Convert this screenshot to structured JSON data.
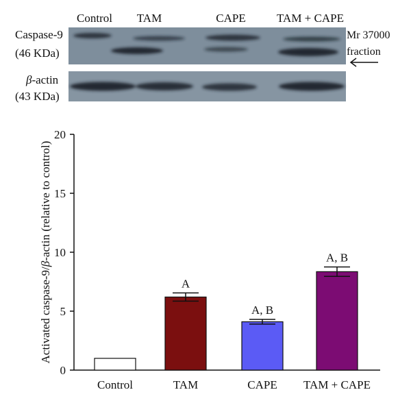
{
  "blot": {
    "lane_labels": [
      "Control",
      "TAM",
      "CAPE",
      "TAM + CAPE"
    ],
    "caspase_label": "Caspase-9",
    "caspase_kda": "(46 KDa)",
    "fraction_line1": "Mr 37000",
    "fraction_line2": "fraction",
    "actin_greek": "β",
    "actin_suffix": "-actin",
    "actin_kda": "(43 KDa)",
    "colors": {
      "panel": "#7e8e9c",
      "band": "#1e252d"
    }
  },
  "chart_data": {
    "type": "bar",
    "categories": [
      "Control",
      "TAM",
      "CAPE",
      "TAM + CAPE"
    ],
    "values": [
      1.0,
      6.2,
      4.1,
      8.35
    ],
    "errors": [
      0,
      0.35,
      0.2,
      0.4
    ],
    "annotations": [
      "",
      "A",
      "A, B",
      "A, B"
    ],
    "colors": [
      "#ffffff",
      "#7b0f0f",
      "#5b5bf5",
      "#7c0c73"
    ],
    "ylabel_prefix": "Activated caspase-9/",
    "ylabel_greek": "β",
    "ylabel_suffix": "-actin (relative to control)",
    "xlabel": "",
    "ylim": [
      0,
      20
    ],
    "yticks": [
      0,
      5,
      10,
      15,
      20
    ],
    "grid": false
  }
}
